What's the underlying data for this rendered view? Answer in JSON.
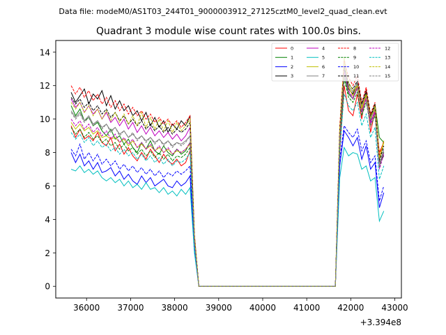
{
  "chart_data": {
    "type": "line",
    "suptitle": "Data file: modeM0/AS1T03_244T01_9000003912_27125cztM0_level2_quad_clean.evt",
    "title": "Quadrant 3 module wise count rates with 100.0s bins.",
    "xlabel": "",
    "ylabel": "",
    "x_offset_label": "+3.394e8",
    "xlim": [
      35300,
      43150
    ],
    "ylim": [
      -0.7,
      14.7
    ],
    "xticks": [
      36000,
      37000,
      38000,
      39000,
      40000,
      41000,
      42000,
      43000
    ],
    "xtick_labels": [
      "36000",
      "37000",
      "38000",
      "39000",
      "40000",
      "41000",
      "42000",
      "43000"
    ],
    "yticks": [
      0,
      2,
      4,
      6,
      8,
      10,
      12,
      14
    ],
    "ytick_labels": [
      "0",
      "2",
      "4",
      "6",
      "8",
      "10",
      "12",
      "14"
    ],
    "grid": false,
    "legend_placement": "top-right",
    "x": {
      "start": 35650,
      "step": 100,
      "count": 72
    },
    "series": [
      {
        "name": "0",
        "color": "#ff0000",
        "dash": "solid",
        "values": [
          9.6,
          8.9,
          9.4,
          8.8,
          9.0,
          8.7,
          9.2,
          8.6,
          8.4,
          8.9,
          8.1,
          8.5,
          7.9,
          8.3,
          7.8,
          7.5,
          8.0,
          7.6,
          8.2,
          7.8,
          7.4,
          7.9,
          7.5,
          7.3,
          7.6,
          7.2,
          7.4,
          8.1,
          2.5,
          0,
          0,
          0,
          0,
          0,
          0,
          0,
          0,
          0,
          0,
          0,
          0,
          0,
          0,
          0,
          0,
          0,
          0,
          0,
          0,
          0,
          0,
          0,
          0,
          0,
          0,
          0,
          0,
          0,
          0,
          0,
          0,
          8.0,
          12.0,
          10.5,
          10.2,
          11.5,
          10.0,
          11.8,
          9.2,
          10.5,
          8.0,
          8.6
        ]
      },
      {
        "name": "1",
        "color": "#008000",
        "dash": "solid",
        "values": [
          10.8,
          10.2,
          10.6,
          9.9,
          10.1,
          9.6,
          9.8,
          9.3,
          9.0,
          9.4,
          8.8,
          9.0,
          8.5,
          8.8,
          8.3,
          8.0,
          8.6,
          8.2,
          8.7,
          8.1,
          7.9,
          8.4,
          8.0,
          7.8,
          8.2,
          7.9,
          8.1,
          8.6,
          2.8,
          0,
          0,
          0,
          0,
          0,
          0,
          0,
          0,
          0,
          0,
          0,
          0,
          0,
          0,
          0,
          0,
          0,
          0,
          0,
          0,
          0,
          0,
          0,
          0,
          0,
          0,
          0,
          0,
          0,
          0,
          0,
          0,
          8.6,
          12.6,
          11.5,
          11.2,
          12.0,
          10.4,
          11.5,
          9.9,
          10.9,
          8.9,
          8.6
        ]
      },
      {
        "name": "2",
        "color": "#0000ff",
        "dash": "solid",
        "values": [
          8.0,
          7.4,
          7.9,
          7.2,
          7.5,
          7.0,
          7.4,
          6.8,
          6.9,
          7.1,
          6.6,
          6.9,
          6.4,
          6.7,
          6.3,
          6.1,
          6.6,
          6.2,
          6.5,
          6.0,
          6.2,
          6.4,
          6.0,
          5.9,
          6.3,
          6.0,
          6.2,
          6.6,
          2.2,
          0,
          0,
          0,
          0,
          0,
          0,
          0,
          0,
          0,
          0,
          0,
          0,
          0,
          0,
          0,
          0,
          0,
          0,
          0,
          0,
          0,
          0,
          0,
          0,
          0,
          0,
          0,
          0,
          0,
          0,
          0,
          0,
          7.2,
          9.3,
          8.9,
          8.4,
          8.9,
          7.6,
          8.4,
          7.0,
          7.4,
          4.7,
          5.6
        ]
      },
      {
        "name": "3",
        "color": "#000000",
        "dash": "solid",
        "values": [
          11.6,
          11.0,
          11.4,
          11.8,
          10.9,
          11.5,
          11.2,
          11.7,
          10.8,
          11.4,
          10.6,
          11.1,
          10.5,
          10.8,
          10.2,
          10.5,
          9.9,
          10.4,
          9.6,
          10.1,
          9.5,
          9.9,
          9.2,
          9.7,
          9.4,
          9.9,
          9.6,
          10.2,
          3.0,
          0,
          0,
          0,
          0,
          0,
          0,
          0,
          0,
          0,
          0,
          0,
          0,
          0,
          0,
          0,
          0,
          0,
          0,
          0,
          0,
          0,
          0,
          0,
          0,
          0,
          0,
          0,
          0,
          0,
          0,
          0,
          0,
          9.0,
          13.0,
          11.8,
          11.5,
          12.2,
          10.8,
          11.6,
          10.2,
          10.8,
          7.4,
          7.8
        ]
      },
      {
        "name": "4",
        "color": "#bf00bf",
        "dash": "solid",
        "values": [
          11.2,
          10.7,
          11.0,
          10.4,
          10.8,
          10.3,
          10.6,
          10.0,
          10.4,
          9.8,
          10.1,
          9.6,
          10.0,
          9.4,
          9.8,
          9.2,
          9.6,
          9.1,
          9.5,
          9.0,
          9.3,
          8.9,
          9.2,
          8.8,
          9.1,
          8.7,
          9.0,
          9.5,
          2.8,
          0,
          0,
          0,
          0,
          0,
          0,
          0,
          0,
          0,
          0,
          0,
          0,
          0,
          0,
          0,
          0,
          0,
          0,
          0,
          0,
          0,
          0,
          0,
          0,
          0,
          0,
          0,
          0,
          0,
          0,
          0,
          0,
          8.8,
          12.8,
          11.6,
          11.2,
          11.9,
          10.5,
          11.3,
          9.8,
          10.5,
          7.2,
          8.0
        ]
      },
      {
        "name": "5",
        "color": "#00bfbf",
        "dash": "solid",
        "values": [
          7.0,
          6.9,
          7.2,
          6.8,
          7.0,
          6.7,
          6.9,
          6.5,
          6.3,
          6.5,
          6.2,
          6.4,
          6.0,
          6.3,
          5.9,
          6.1,
          5.8,
          6.2,
          5.8,
          5.9,
          5.6,
          5.9,
          5.5,
          5.7,
          5.4,
          5.8,
          5.5,
          5.9,
          2.0,
          0,
          0,
          0,
          0,
          0,
          0,
          0,
          0,
          0,
          0,
          0,
          0,
          0,
          0,
          0,
          0,
          0,
          0,
          0,
          0,
          0,
          0,
          0,
          0,
          0,
          0,
          0,
          0,
          0,
          0,
          0,
          0,
          6.5,
          8.3,
          7.8,
          8.0,
          7.9,
          7.0,
          7.2,
          6.3,
          6.5,
          3.9,
          4.5
        ]
      },
      {
        "name": "6",
        "color": "#bfbf00",
        "dash": "solid",
        "values": [
          9.8,
          9.4,
          9.7,
          9.3,
          9.5,
          9.1,
          9.3,
          8.9,
          9.0,
          8.8,
          8.9,
          8.6,
          8.8,
          8.4,
          8.7,
          8.3,
          8.5,
          8.2,
          8.4,
          8.1,
          8.3,
          8.0,
          8.2,
          7.9,
          8.1,
          8.0,
          8.2,
          8.5,
          2.6,
          0,
          0,
          0,
          0,
          0,
          0,
          0,
          0,
          0,
          0,
          0,
          0,
          0,
          0,
          0,
          0,
          0,
          0,
          0,
          0,
          0,
          0,
          0,
          0,
          0,
          0,
          0,
          0,
          0,
          0,
          0,
          0,
          9.2,
          13.7,
          11.9,
          11.4,
          12.0,
          10.6,
          11.4,
          10.0,
          10.6,
          7.6,
          8.6
        ]
      },
      {
        "name": "7",
        "color": "#808080",
        "dash": "solid",
        "values": [
          10.5,
          10.1,
          10.4,
          9.9,
          10.2,
          9.7,
          9.9,
          9.5,
          9.7,
          9.3,
          9.5,
          9.1,
          9.3,
          8.9,
          9.1,
          8.8,
          9.0,
          8.7,
          8.9,
          8.6,
          8.8,
          8.5,
          8.7,
          8.4,
          8.6,
          8.5,
          8.7,
          9.0,
          2.7,
          0,
          0,
          0,
          0,
          0,
          0,
          0,
          0,
          0,
          0,
          0,
          0,
          0,
          0,
          0,
          0,
          0,
          0,
          0,
          0,
          0,
          0,
          0,
          0,
          0,
          0,
          0,
          0,
          0,
          0,
          0,
          0,
          8.9,
          13.3,
          12.0,
          11.6,
          12.2,
          10.8,
          11.5,
          10.0,
          10.7,
          7.3,
          8.2
        ]
      },
      {
        "name": "8",
        "color": "#ff0000",
        "dash": "dashed",
        "values": [
          12.0,
          11.5,
          11.9,
          11.3,
          11.7,
          11.1,
          11.5,
          10.9,
          11.3,
          10.7,
          11.1,
          10.5,
          10.9,
          10.3,
          10.7,
          10.2,
          10.5,
          10.0,
          10.3,
          9.8,
          10.1,
          9.7,
          10.0,
          9.6,
          9.9,
          9.5,
          9.8,
          10.2,
          3.1,
          0,
          0,
          0,
          0,
          0,
          0,
          0,
          0,
          0,
          0,
          0,
          0,
          0,
          0,
          0,
          0,
          0,
          0,
          0,
          0,
          0,
          0,
          0,
          0,
          0,
          0,
          0,
          0,
          0,
          0,
          0,
          0,
          9.6,
          13.5,
          12.5,
          12.0,
          12.6,
          11.0,
          11.9,
          10.3,
          11.0,
          7.8,
          8.7
        ]
      },
      {
        "name": "9",
        "color": "#008000",
        "dash": "dashed",
        "values": [
          9.5,
          9.1,
          9.4,
          8.9,
          9.2,
          8.8,
          9.0,
          8.6,
          8.8,
          8.4,
          8.6,
          8.2,
          8.5,
          8.1,
          8.3,
          7.9,
          8.2,
          7.8,
          8.1,
          7.7,
          8.0,
          7.6,
          7.9,
          7.5,
          7.8,
          7.7,
          7.9,
          8.3,
          2.5,
          0,
          0,
          0,
          0,
          0,
          0,
          0,
          0,
          0,
          0,
          0,
          0,
          0,
          0,
          0,
          0,
          0,
          0,
          0,
          0,
          0,
          0,
          0,
          0,
          0,
          0,
          0,
          0,
          0,
          0,
          0,
          0,
          8.4,
          12.4,
          11.3,
          11.0,
          11.6,
          10.2,
          11.0,
          9.6,
          10.2,
          7.1,
          8.0
        ]
      },
      {
        "name": "10",
        "color": "#0000ff",
        "dash": "dashed",
        "values": [
          8.2,
          7.8,
          8.5,
          7.6,
          8.0,
          7.5,
          7.9,
          7.3,
          7.6,
          7.2,
          7.5,
          7.0,
          7.3,
          6.9,
          7.2,
          6.8,
          7.1,
          6.7,
          7.0,
          6.6,
          6.9,
          6.5,
          6.8,
          6.6,
          6.9,
          6.7,
          6.9,
          7.2,
          2.3,
          0,
          0,
          0,
          0,
          0,
          0,
          0,
          0,
          0,
          0,
          0,
          0,
          0,
          0,
          0,
          0,
          0,
          0,
          0,
          0,
          0,
          0,
          0,
          0,
          0,
          0,
          0,
          0,
          0,
          0,
          0,
          0,
          7.6,
          9.6,
          9.2,
          8.9,
          9.4,
          8.1,
          8.7,
          7.4,
          7.8,
          5.1,
          6.0
        ]
      },
      {
        "name": "11",
        "color": "#000000",
        "dash": "dashed",
        "values": [
          11.3,
          10.9,
          11.2,
          10.7,
          11.0,
          10.5,
          10.8,
          10.3,
          10.6,
          10.1,
          10.4,
          9.9,
          10.2,
          9.7,
          10.0,
          9.6,
          9.9,
          9.4,
          9.7,
          9.3,
          9.6,
          9.2,
          9.5,
          9.1,
          9.4,
          9.2,
          9.4,
          9.8,
          2.9,
          0,
          0,
          0,
          0,
          0,
          0,
          0,
          0,
          0,
          0,
          0,
          0,
          0,
          0,
          0,
          0,
          0,
          0,
          0,
          0,
          0,
          0,
          0,
          0,
          0,
          0,
          0,
          0,
          0,
          0,
          0,
          0,
          9.3,
          13.1,
          12.1,
          11.8,
          12.3,
          10.9,
          11.7,
          10.2,
          10.9,
          7.5,
          8.4
        ]
      },
      {
        "name": "12",
        "color": "#bf00bf",
        "dash": "dashed",
        "values": [
          10.0,
          9.6,
          9.9,
          9.4,
          9.7,
          9.2,
          9.5,
          9.0,
          9.3,
          8.8,
          9.1,
          8.6,
          8.9,
          8.5,
          8.8,
          8.3,
          8.6,
          8.2,
          8.5,
          8.1,
          8.4,
          8.0,
          8.3,
          7.9,
          8.2,
          8.0,
          8.2,
          8.6,
          2.6,
          0,
          0,
          0,
          0,
          0,
          0,
          0,
          0,
          0,
          0,
          0,
          0,
          0,
          0,
          0,
          0,
          0,
          0,
          0,
          0,
          0,
          0,
          0,
          0,
          0,
          0,
          0,
          0,
          0,
          0,
          0,
          0,
          8.7,
          12.9,
          11.7,
          11.3,
          11.9,
          10.4,
          11.2,
          9.7,
          10.4,
          7.0,
          7.9
        ]
      },
      {
        "name": "13",
        "color": "#00bfbf",
        "dash": "dashed",
        "values": [
          9.2,
          8.8,
          9.1,
          8.6,
          8.9,
          8.4,
          8.7,
          8.3,
          8.5,
          8.1,
          8.3,
          7.9,
          8.2,
          7.8,
          8.0,
          7.6,
          7.9,
          7.5,
          7.8,
          7.4,
          7.7,
          7.3,
          7.6,
          7.2,
          7.5,
          7.4,
          7.6,
          8.0,
          2.4,
          0,
          0,
          0,
          0,
          0,
          0,
          0,
          0,
          0,
          0,
          0,
          0,
          0,
          0,
          0,
          0,
          0,
          0,
          0,
          0,
          0,
          0,
          0,
          0,
          0,
          0,
          0,
          0,
          0,
          0,
          0,
          0,
          8.2,
          11.5,
          10.8,
          10.5,
          11.0,
          9.6,
          10.3,
          8.9,
          9.5,
          6.4,
          7.2
        ]
      },
      {
        "name": "14",
        "color": "#bfbf00",
        "dash": "dashed",
        "values": [
          11.0,
          10.6,
          11.0,
          10.4,
          10.8,
          10.2,
          10.6,
          10.0,
          10.5,
          9.9,
          10.4,
          9.8,
          10.3,
          9.7,
          10.2,
          9.6,
          10.4,
          9.5,
          10.1,
          9.4,
          10.0,
          9.3,
          9.9,
          9.2,
          9.8,
          9.3,
          9.6,
          10.0,
          3.0,
          0,
          0,
          0,
          0,
          0,
          0,
          0,
          0,
          0,
          0,
          0,
          0,
          0,
          0,
          0,
          0,
          0,
          0,
          0,
          0,
          0,
          0,
          0,
          0,
          0,
          0,
          0,
          0,
          0,
          0,
          0,
          0,
          9.4,
          13.4,
          12.2,
          11.7,
          12.0,
          10.7,
          11.5,
          10.1,
          10.8,
          7.7,
          8.7
        ]
      },
      {
        "name": "15",
        "color": "#808080",
        "dash": "dashed",
        "values": [
          10.4,
          10.0,
          10.3,
          9.8,
          10.1,
          9.6,
          9.9,
          9.4,
          9.7,
          9.2,
          9.5,
          9.0,
          9.3,
          8.9,
          9.2,
          8.7,
          9.0,
          8.6,
          8.9,
          8.5,
          8.8,
          8.4,
          8.7,
          8.3,
          8.6,
          8.4,
          8.6,
          9.0,
          2.7,
          0,
          0,
          0,
          0,
          0,
          0,
          0,
          0,
          0,
          0,
          0,
          0,
          0,
          0,
          0,
          0,
          0,
          0,
          0,
          0,
          0,
          0,
          0,
          0,
          0,
          0,
          0,
          0,
          0,
          0,
          0,
          0,
          8.9,
          12.7,
          11.6,
          11.2,
          11.8,
          10.3,
          11.1,
          9.6,
          10.3,
          7.2,
          8.1
        ]
      }
    ]
  }
}
